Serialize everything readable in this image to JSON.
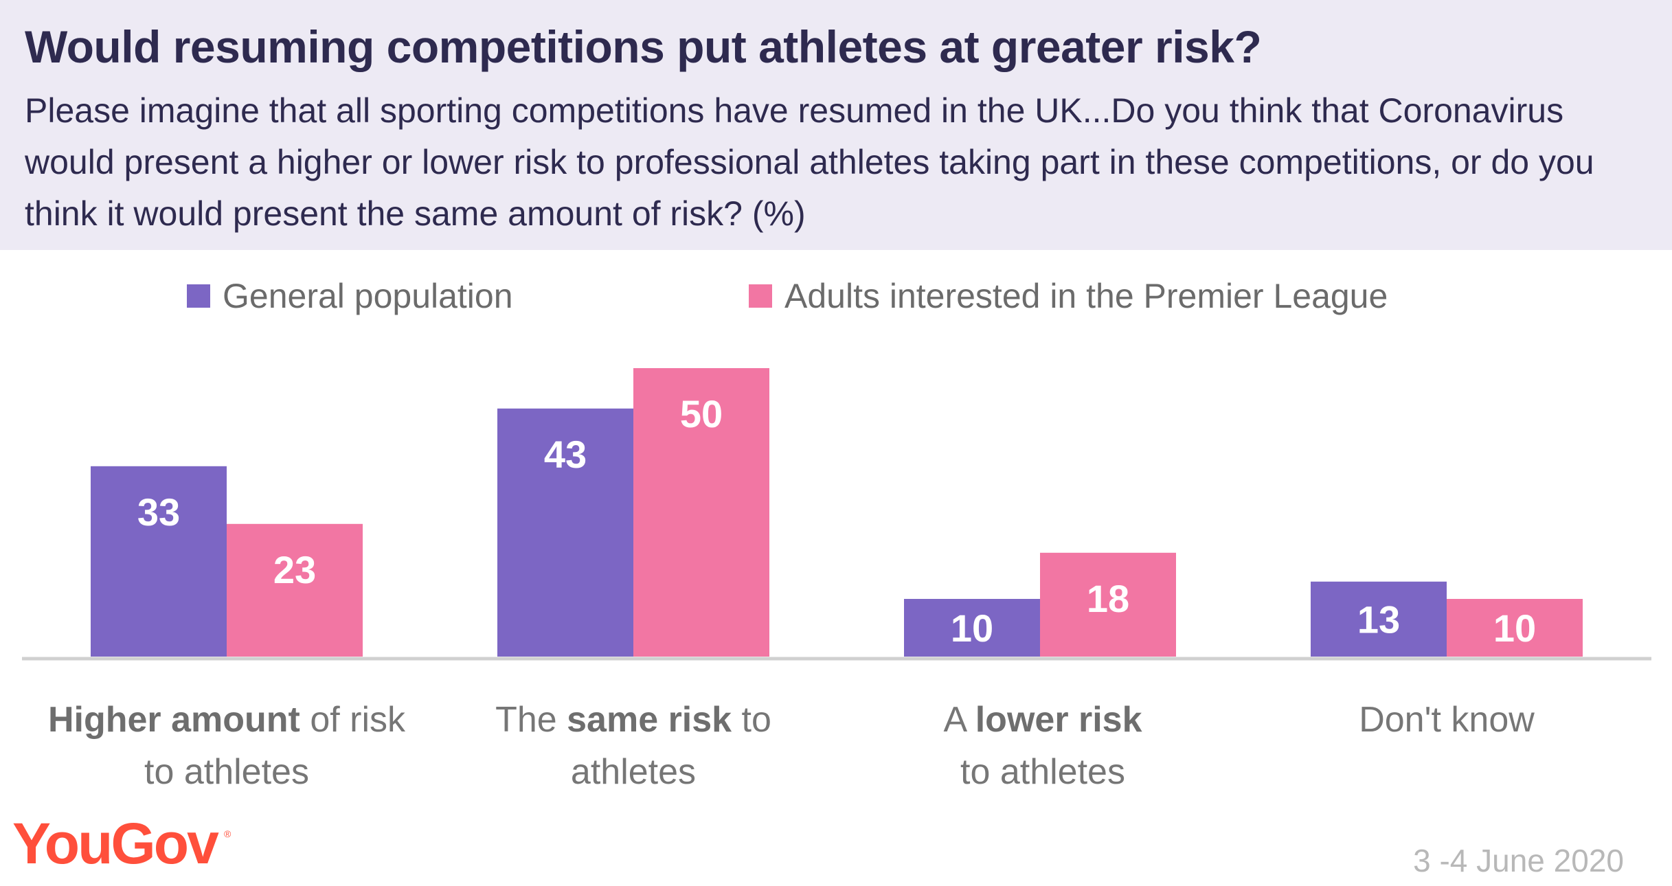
{
  "title": "Would resuming competitions put athletes at greater risk?",
  "subtitle": "Please imagine that all sporting competitions have resumed in the UK...Do you think that Coronavirus would present a higher or lower risk to professional athletes taking part in these competitions, or do you think it would present the same amount of risk? (%)",
  "logo_text": "YouGov",
  "logo_mark": "®",
  "date": "3 -4 June 2020",
  "colors": {
    "header_bg": "#edeaf4",
    "series_1": "#7c66c4",
    "series_2": "#f276a3",
    "baseline": "#d0d0d0",
    "logo": "#ff4f3b"
  },
  "category_labels": [
    {
      "parts": [
        {
          "text": "Higher amount",
          "bold": true
        },
        {
          "text": " of risk",
          "bold": false
        },
        {
          "text": "to athletes",
          "bold": false,
          "newline": true
        }
      ]
    },
    {
      "parts": [
        {
          "text": "The ",
          "bold": false
        },
        {
          "text": "same risk",
          "bold": true
        },
        {
          "text": " to",
          "bold": false
        },
        {
          "text": "athletes",
          "bold": false,
          "newline": true
        }
      ]
    },
    {
      "parts": [
        {
          "text": "A ",
          "bold": false
        },
        {
          "text": "lower risk",
          "bold": true
        },
        {
          "text": "to athletes",
          "bold": false,
          "newline": true
        }
      ]
    },
    {
      "parts": [
        {
          "text": "Don't know",
          "bold": false
        }
      ]
    }
  ],
  "chart_data": {
    "type": "bar",
    "title": "Would resuming competitions put athletes at greater risk?",
    "categories": [
      "Higher amount of risk to athletes",
      "The same risk to athletes",
      "A lower risk to athletes",
      "Don't know"
    ],
    "series": [
      {
        "name": "General population",
        "color": "#7c66c4",
        "values": [
          33,
          43,
          10,
          13
        ]
      },
      {
        "name": "Adults interested in the Premier League",
        "color": "#f276a3",
        "values": [
          23,
          50,
          18,
          10
        ]
      }
    ],
    "ylim": [
      0,
      50
    ],
    "grid": false,
    "legend": "top",
    "data_labels": true
  }
}
